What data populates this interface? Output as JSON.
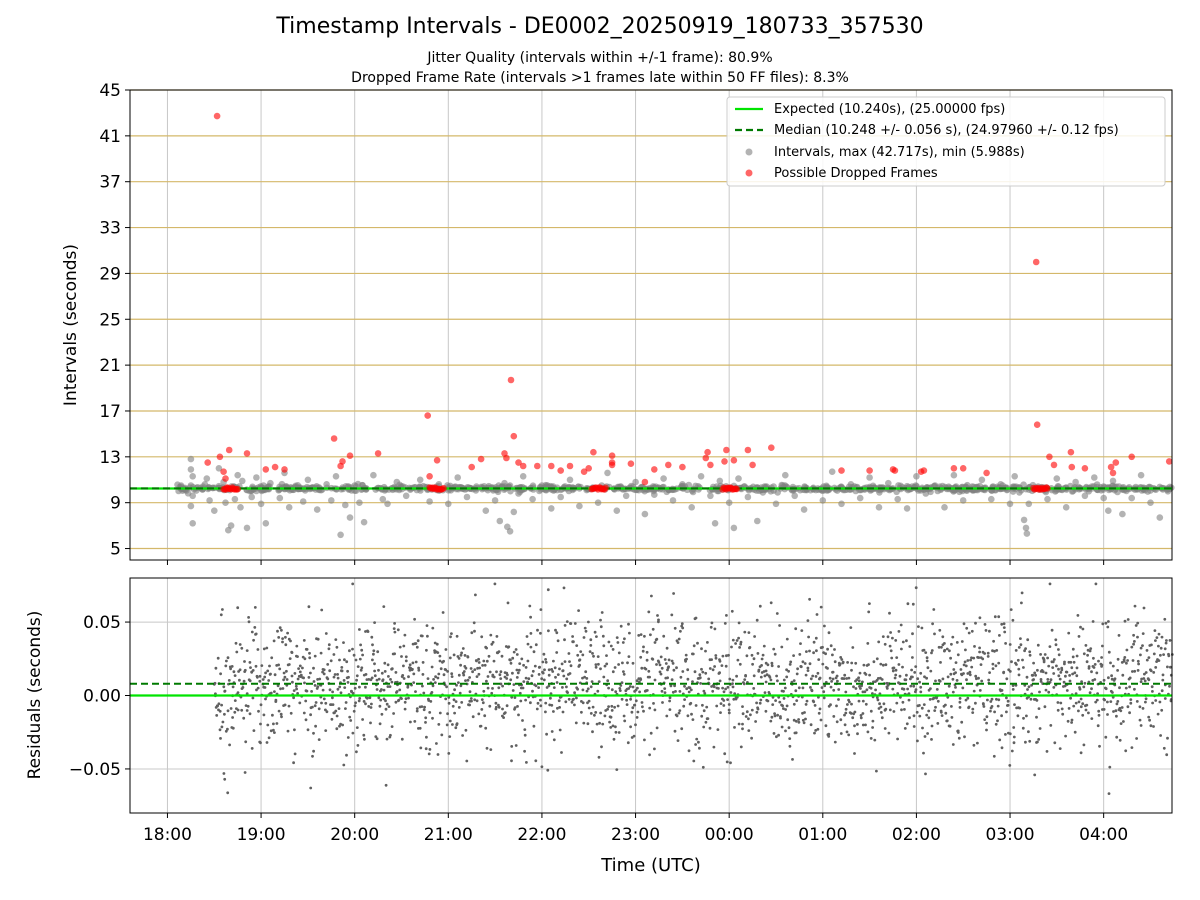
{
  "chart_data": {
    "type": "scatter",
    "title": "Timestamp Intervals - DE0002_20250919_180733_357530",
    "subtitle_1": "Jitter Quality (intervals within +/-1 frame): 80.9%",
    "subtitle_2": "Dropped Frame Rate (intervals >1 frames late within 50 FF files): 8.3%",
    "xlabel": "Time (UTC)",
    "x_unit": "hours since 18:00 UTC",
    "xlim": [
      -0.4,
      10.73
    ],
    "x_ticks": [
      0,
      1,
      2,
      3,
      4,
      5,
      6,
      7,
      8,
      9,
      10
    ],
    "x_tick_labels": [
      "18:00",
      "19:00",
      "20:00",
      "21:00",
      "22:00",
      "23:00",
      "00:00",
      "01:00",
      "02:00",
      "03:00",
      "04:00"
    ],
    "panels": {
      "intervals": {
        "ylabel": "Intervals (seconds)",
        "ylim": [
          4,
          45
        ],
        "y_ticks": [
          5,
          9,
          13,
          17,
          21,
          25,
          29,
          33,
          37,
          41,
          45
        ],
        "gridline_color": "#d4b86a",
        "expected": 10.24,
        "median": 10.248,
        "legend": {
          "position": "upper right",
          "entries": [
            "Expected (10.240s), (25.00000 fps)",
            "Median (10.248 +/- 0.056 s), (24.97960 +/- 0.12 fps)",
            "Intervals, max (42.717s), min (5.988s)",
            "Possible Dropped Frames"
          ]
        },
        "intervals_outliers": [
          [
            0.25,
            12.8
          ],
          [
            0.25,
            11.9
          ],
          [
            0.27,
            11.3
          ],
          [
            0.25,
            10.5
          ],
          [
            0.27,
            9.6
          ],
          [
            0.25,
            8.7
          ],
          [
            0.27,
            7.2
          ],
          [
            0.4,
            10.6
          ],
          [
            0.45,
            9.2
          ],
          [
            0.42,
            11.1
          ],
          [
            0.55,
            12.0
          ],
          [
            0.5,
            8.3
          ],
          [
            0.6,
            10.8
          ],
          [
            0.62,
            9.0
          ],
          [
            0.65,
            6.6
          ],
          [
            0.68,
            7.0
          ],
          [
            0.72,
            9.3
          ],
          [
            0.75,
            11.4
          ],
          [
            0.78,
            8.6
          ],
          [
            0.8,
            10.9
          ],
          [
            0.85,
            6.8
          ],
          [
            0.9,
            9.5
          ],
          [
            0.95,
            11.2
          ],
          [
            1.0,
            8.9
          ],
          [
            1.05,
            7.2
          ],
          [
            1.1,
            10.7
          ],
          [
            1.2,
            9.4
          ],
          [
            1.25,
            11.6
          ],
          [
            1.3,
            8.6
          ],
          [
            1.4,
            10.3
          ],
          [
            1.45,
            9.1
          ],
          [
            1.5,
            11.0
          ],
          [
            1.6,
            8.4
          ],
          [
            1.7,
            10.6
          ],
          [
            1.75,
            9.2
          ],
          [
            1.8,
            11.3
          ],
          [
            1.85,
            6.2
          ],
          [
            1.9,
            8.8
          ],
          [
            1.95,
            7.7
          ],
          [
            2.0,
            10.5
          ],
          [
            2.05,
            9.0
          ],
          [
            2.1,
            7.3
          ],
          [
            2.2,
            11.4
          ],
          [
            2.3,
            9.3
          ],
          [
            2.35,
            8.9
          ],
          [
            2.45,
            10.8
          ],
          [
            2.55,
            9.6
          ],
          [
            2.7,
            11.0
          ],
          [
            2.8,
            9.1
          ],
          [
            2.9,
            10.6
          ],
          [
            3.0,
            8.9
          ],
          [
            3.1,
            11.2
          ],
          [
            3.2,
            9.5
          ],
          [
            3.3,
            10.4
          ],
          [
            3.4,
            8.3
          ],
          [
            3.5,
            9.2
          ],
          [
            3.55,
            7.4
          ],
          [
            3.6,
            10.7
          ],
          [
            3.63,
            6.9
          ],
          [
            3.66,
            6.5
          ],
          [
            3.7,
            8.2
          ],
          [
            3.75,
            9.8
          ],
          [
            3.8,
            11.3
          ],
          [
            3.9,
            9.3
          ],
          [
            4.0,
            10.5
          ],
          [
            4.1,
            8.5
          ],
          [
            4.2,
            9.5
          ],
          [
            4.3,
            11.0
          ],
          [
            4.4,
            8.7
          ],
          [
            4.5,
            10.2
          ],
          [
            4.6,
            9.0
          ],
          [
            4.7,
            11.6
          ],
          [
            4.8,
            8.3
          ],
          [
            4.9,
            9.6
          ],
          [
            5.0,
            10.8
          ],
          [
            5.1,
            8.0
          ],
          [
            5.2,
            9.7
          ],
          [
            5.3,
            11.1
          ],
          [
            5.4,
            9.2
          ],
          [
            5.5,
            10.6
          ],
          [
            5.6,
            8.6
          ],
          [
            5.7,
            11.3
          ],
          [
            5.8,
            9.6
          ],
          [
            5.85,
            7.2
          ],
          [
            5.9,
            10.9
          ],
          [
            6.0,
            9.0
          ],
          [
            6.05,
            6.8
          ],
          [
            6.1,
            11.1
          ],
          [
            6.2,
            9.5
          ],
          [
            6.3,
            7.4
          ],
          [
            6.4,
            10.4
          ],
          [
            6.5,
            8.9
          ],
          [
            6.6,
            11.4
          ],
          [
            6.7,
            9.6
          ],
          [
            6.8,
            8.4
          ],
          [
            6.9,
            10.3
          ],
          [
            7.0,
            9.2
          ],
          [
            7.1,
            11.7
          ],
          [
            7.2,
            8.9
          ],
          [
            7.3,
            10.6
          ],
          [
            7.4,
            9.4
          ],
          [
            7.5,
            11.2
          ],
          [
            7.6,
            8.6
          ],
          [
            7.7,
            10.7
          ],
          [
            7.8,
            9.3
          ],
          [
            7.9,
            8.5
          ],
          [
            8.0,
            11.3
          ],
          [
            8.1,
            9.8
          ],
          [
            8.2,
            10.5
          ],
          [
            8.3,
            8.6
          ],
          [
            8.4,
            11.4
          ],
          [
            8.5,
            9.2
          ],
          [
            8.6,
            10.1
          ],
          [
            8.7,
            11.0
          ],
          [
            8.8,
            9.3
          ],
          [
            8.9,
            10.6
          ],
          [
            9.0,
            8.9
          ],
          [
            9.05,
            11.3
          ],
          [
            9.1,
            9.9
          ],
          [
            9.15,
            7.5
          ],
          [
            9.17,
            6.8
          ],
          [
            9.18,
            6.3
          ],
          [
            9.2,
            8.9
          ],
          [
            9.3,
            10.4
          ],
          [
            9.4,
            9.3
          ],
          [
            9.5,
            11.1
          ],
          [
            9.6,
            8.6
          ],
          [
            9.7,
            10.8
          ],
          [
            9.8,
            9.6
          ],
          [
            9.9,
            11.2
          ],
          [
            10.0,
            9.4
          ],
          [
            10.05,
            8.3
          ],
          [
            10.1,
            10.9
          ],
          [
            10.2,
            8.0
          ],
          [
            10.3,
            9.4
          ],
          [
            10.4,
            11.4
          ],
          [
            10.5,
            9.0
          ],
          [
            10.6,
            7.7
          ],
          [
            10.7,
            10.2
          ]
        ],
        "dropped_frames": [
          [
            0.43,
            12.5
          ],
          [
            0.53,
            42.72
          ],
          [
            0.56,
            13.0
          ],
          [
            0.6,
            11.7
          ],
          [
            0.62,
            11.1
          ],
          [
            0.66,
            13.6
          ],
          [
            0.85,
            13.3
          ],
          [
            1.05,
            11.9
          ],
          [
            1.15,
            12.1
          ],
          [
            1.25,
            11.9
          ],
          [
            1.78,
            14.6
          ],
          [
            1.85,
            12.2
          ],
          [
            1.87,
            12.6
          ],
          [
            1.95,
            13.1
          ],
          [
            2.25,
            13.3
          ],
          [
            2.78,
            16.6
          ],
          [
            2.8,
            11.3
          ],
          [
            2.88,
            12.7
          ],
          [
            3.25,
            12.1
          ],
          [
            3.35,
            12.8
          ],
          [
            3.6,
            13.3
          ],
          [
            3.62,
            12.9
          ],
          [
            3.67,
            19.7
          ],
          [
            3.7,
            14.8
          ],
          [
            3.75,
            12.5
          ],
          [
            3.8,
            12.2
          ],
          [
            3.95,
            12.2
          ],
          [
            4.1,
            12.2
          ],
          [
            4.2,
            11.8
          ],
          [
            4.3,
            12.2
          ],
          [
            4.45,
            11.7
          ],
          [
            4.5,
            12.0
          ],
          [
            4.55,
            13.4
          ],
          [
            4.75,
            12.5
          ],
          [
            4.75,
            13.1
          ],
          [
            4.75,
            12.3
          ],
          [
            4.95,
            12.4
          ],
          [
            5.1,
            10.8
          ],
          [
            5.2,
            11.9
          ],
          [
            5.35,
            12.3
          ],
          [
            5.5,
            12.1
          ],
          [
            5.75,
            12.9
          ],
          [
            5.77,
            13.4
          ],
          [
            5.8,
            12.3
          ],
          [
            5.95,
            12.6
          ],
          [
            5.97,
            13.6
          ],
          [
            6.05,
            12.7
          ],
          [
            6.2,
            13.6
          ],
          [
            6.25,
            12.3
          ],
          [
            6.45,
            13.8
          ],
          [
            7.2,
            11.8
          ],
          [
            7.5,
            11.8
          ],
          [
            7.75,
            11.9
          ],
          [
            7.77,
            11.8
          ],
          [
            8.05,
            11.7
          ],
          [
            8.08,
            11.8
          ],
          [
            8.4,
            12.0
          ],
          [
            8.5,
            12.0
          ],
          [
            8.75,
            11.6
          ],
          [
            9.28,
            30.0
          ],
          [
            9.29,
            15.8
          ],
          [
            9.42,
            13.0
          ],
          [
            9.47,
            12.3
          ],
          [
            9.65,
            13.4
          ],
          [
            9.66,
            12.1
          ],
          [
            9.8,
            12.0
          ],
          [
            10.08,
            12.1
          ],
          [
            10.1,
            11.6
          ],
          [
            10.13,
            12.5
          ],
          [
            10.3,
            13.0
          ],
          [
            10.7,
            12.6
          ]
        ],
        "dropped_frame_clusters": [
          {
            "x_start": 0.6,
            "x_end": 0.75,
            "y": 10.24
          },
          {
            "x_start": 2.8,
            "x_end": 2.95,
            "y": 10.24
          },
          {
            "x_start": 4.53,
            "x_end": 4.68,
            "y": 10.24
          },
          {
            "x_start": 5.93,
            "x_end": 6.08,
            "y": 10.24
          },
          {
            "x_start": 9.25,
            "x_end": 9.4,
            "y": 10.24
          }
        ],
        "series_x_range": [
          0.1,
          10.73
        ]
      },
      "residuals": {
        "ylabel": "Residuals (seconds)",
        "ylim": [
          -0.08,
          0.08
        ],
        "y_ticks": [
          0.05,
          0.0,
          -0.05
        ],
        "y_tick_labels": [
          "0.05",
          "0.00",
          "−0.05"
        ],
        "expected": 0.0,
        "median": 0.008,
        "residual_std": 0.022,
        "residual_range": [
          -0.074,
          0.076
        ],
        "series_x_range": [
          0.5,
          10.73
        ]
      }
    },
    "colors": {
      "expected_line": "#00e400",
      "median_line": "#007a00",
      "interval_points": "#808080",
      "dropped_points": "#ff0000",
      "residual_points": "#606060",
      "grid": "#c8c8c8"
    }
  }
}
